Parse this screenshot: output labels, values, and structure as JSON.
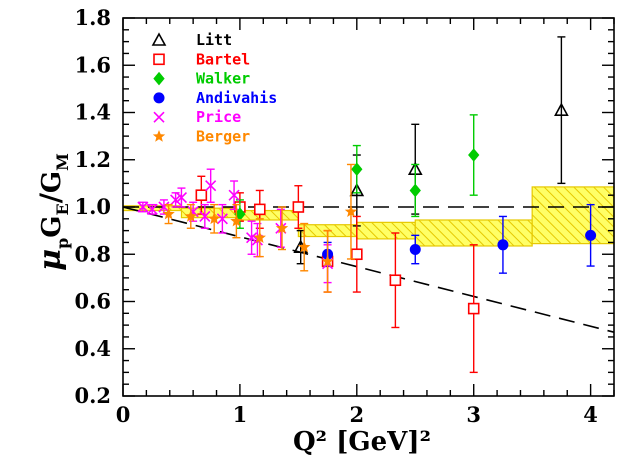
{
  "chart_data": {
    "type": "scatter",
    "xlim": [
      0,
      4.2
    ],
    "ylim": [
      0.2,
      1.8
    ],
    "x_ticks": [
      0,
      1,
      2,
      3,
      4
    ],
    "y_ticks": [
      0.2,
      0.4,
      0.6,
      0.8,
      1.0,
      1.2,
      1.4,
      1.6,
      1.8
    ],
    "x_tick_labels": [
      "0",
      "1",
      "2",
      "3",
      "4"
    ],
    "y_tick_labels": [
      "0.2",
      "0.4",
      "0.6",
      "0.8",
      "1.0",
      "1.2",
      "1.4",
      "1.6",
      "1.8"
    ],
    "xlabel": "Q² [GeV]²",
    "ylabel_parts": {
      "mu": "μ",
      "p": "p",
      "ge": "G",
      "e": "E",
      "slash": "/",
      "gm": "G",
      "m": "M"
    },
    "grid": false,
    "legend_position": "top-left",
    "series": [
      {
        "name": "Litt",
        "color": "#000000",
        "marker": "triangle-open",
        "points": [
          {
            "x": 1.52,
            "y": 0.83,
            "err": 0.07
          },
          {
            "x": 2.0,
            "y": 1.07,
            "err": 0.15
          },
          {
            "x": 2.5,
            "y": 1.16,
            "err": 0.19
          },
          {
            "x": 3.75,
            "y": 1.41,
            "err": 0.31
          }
        ]
      },
      {
        "name": "Bartel",
        "color": "#ff0000",
        "marker": "square-open",
        "points": [
          {
            "x": 0.67,
            "y": 1.05,
            "err": 0.08
          },
          {
            "x": 1.0,
            "y": 1.0,
            "err": 0.06
          },
          {
            "x": 1.17,
            "y": 0.99,
            "err": 0.08
          },
          {
            "x": 1.5,
            "y": 1.0,
            "err": 0.09
          },
          {
            "x": 1.75,
            "y": 0.77,
            "err": 0.13
          },
          {
            "x": 2.0,
            "y": 0.8,
            "err": 0.16
          },
          {
            "x": 2.33,
            "y": 0.69,
            "err": 0.2
          },
          {
            "x": 3.0,
            "y": 0.57,
            "err": 0.27
          }
        ]
      },
      {
        "name": "Walker",
        "color": "#00cc00",
        "marker": "diamond",
        "points": [
          {
            "x": 1.0,
            "y": 0.97,
            "err": 0.06
          },
          {
            "x": 2.0,
            "y": 1.16,
            "err": 0.1
          },
          {
            "x": 2.5,
            "y": 1.07,
            "err": 0.11
          },
          {
            "x": 3.0,
            "y": 1.22,
            "err": 0.17
          }
        ]
      },
      {
        "name": "Andivahis",
        "color": "#0000ff",
        "marker": "circle",
        "points": [
          {
            "x": 1.75,
            "y": 0.8,
            "err": 0.05
          },
          {
            "x": 2.5,
            "y": 0.82,
            "err": 0.06
          },
          {
            "x": 3.25,
            "y": 0.84,
            "err": 0.12
          },
          {
            "x": 4.0,
            "y": 0.88,
            "err": 0.13
          }
        ]
      },
      {
        "name": "Price",
        "color": "#ff00ff",
        "marker": "cross",
        "points": [
          {
            "x": 0.17,
            "y": 1.0,
            "err": 0.02
          },
          {
            "x": 0.25,
            "y": 0.99,
            "err": 0.02
          },
          {
            "x": 0.35,
            "y": 1.0,
            "err": 0.03
          },
          {
            "x": 0.45,
            "y": 1.03,
            "err": 0.03
          },
          {
            "x": 0.5,
            "y": 1.04,
            "err": 0.04
          },
          {
            "x": 0.6,
            "y": 0.98,
            "err": 0.04
          },
          {
            "x": 0.7,
            "y": 0.96,
            "err": 0.05
          },
          {
            "x": 0.75,
            "y": 1.09,
            "err": 0.07
          },
          {
            "x": 0.85,
            "y": 0.95,
            "err": 0.06
          },
          {
            "x": 0.95,
            "y": 1.05,
            "err": 0.06
          },
          {
            "x": 1.1,
            "y": 0.87,
            "err": 0.07
          },
          {
            "x": 1.15,
            "y": 0.86,
            "err": 0.07
          },
          {
            "x": 1.35,
            "y": 0.91,
            "err": 0.08
          },
          {
            "x": 1.75,
            "y": 0.76,
            "err": 0.08
          }
        ]
      },
      {
        "name": "Berger",
        "color": "#ff8800",
        "marker": "star",
        "points": [
          {
            "x": 0.39,
            "y": 0.97,
            "err": 0.04
          },
          {
            "x": 0.58,
            "y": 0.96,
            "err": 0.05
          },
          {
            "x": 0.78,
            "y": 0.95,
            "err": 0.06
          },
          {
            "x": 0.97,
            "y": 0.94,
            "err": 0.07
          },
          {
            "x": 1.17,
            "y": 0.87,
            "err": 0.08
          },
          {
            "x": 1.36,
            "y": 0.91,
            "err": 0.09
          },
          {
            "x": 1.55,
            "y": 0.83,
            "err": 0.1
          },
          {
            "x": 1.75,
            "y": 0.77,
            "err": 0.13
          },
          {
            "x": 1.95,
            "y": 0.98,
            "err": 0.2
          }
        ]
      }
    ],
    "reference_lines": [
      {
        "from": [
          0,
          1.0
        ],
        "to": [
          4.2,
          1.0
        ],
        "style": "dashed",
        "color": "#000000"
      },
      {
        "from": [
          0,
          1.0
        ],
        "to": [
          4.2,
          0.47
        ],
        "style": "dashed",
        "color": "#000000"
      }
    ],
    "bands": [
      {
        "x": [
          0.0,
          0.5
        ],
        "y": [
          0.985,
          1.005
        ]
      },
      {
        "x": [
          0.5,
          1.0
        ],
        "y": [
          0.955,
          0.995
        ]
      },
      {
        "x": [
          1.0,
          1.5
        ],
        "y": [
          0.945,
          0.985
        ]
      },
      {
        "x": [
          1.5,
          2.0
        ],
        "y": [
          0.875,
          0.925
        ]
      },
      {
        "x": [
          2.0,
          2.5
        ],
        "y": [
          0.865,
          0.935
        ]
      },
      {
        "x": [
          2.5,
          3.5
        ],
        "y": [
          0.835,
          0.945
        ]
      },
      {
        "x": [
          3.5,
          4.2
        ],
        "y": [
          0.845,
          1.085
        ]
      }
    ],
    "band_color": "#ffff00"
  }
}
